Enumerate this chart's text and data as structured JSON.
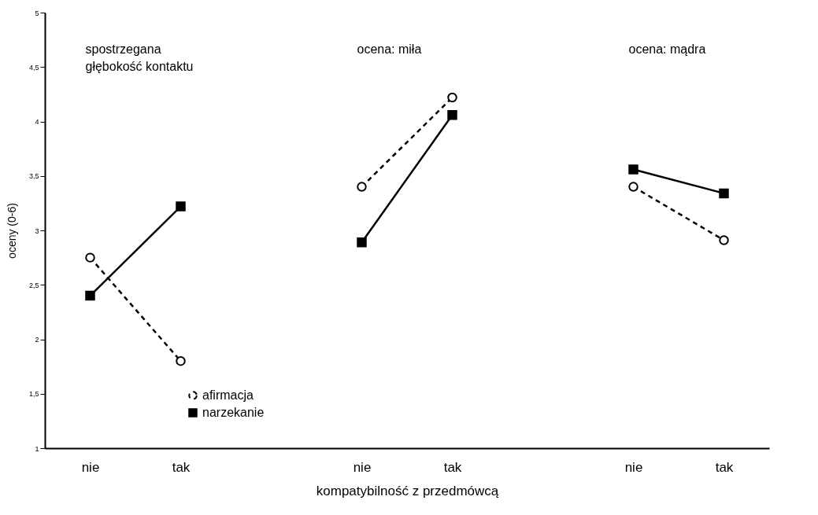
{
  "chart_data": {
    "type": "line",
    "xlabel": "kompatybilność z przedmówcą",
    "ylabel": "oceny (0-6)",
    "categories": [
      "nie",
      "tak",
      null,
      "nie",
      "tak",
      null,
      "nie",
      "tak"
    ],
    "series": [
      {
        "name": "afirmacja",
        "color": "#000000",
        "marker": "circle",
        "line_style": "dashed",
        "values": [
          2.75,
          1.8,
          null,
          3.4,
          4.22,
          null,
          3.4,
          2.91
        ]
      },
      {
        "name": "narzekanie",
        "color": "#000000",
        "marker": "square",
        "line_style": "solid",
        "values": [
          2.4,
          3.22,
          null,
          2.89,
          4.06,
          null,
          3.56,
          3.34
        ]
      }
    ],
    "ylim": [
      1,
      5
    ],
    "yticks": [
      1,
      {
        "value": 1.5,
        "label": "1,5"
      },
      2,
      {
        "value": 2.5,
        "label": "2,5"
      },
      3,
      {
        "value": 3.5,
        "label": "3,5"
      },
      4,
      {
        "value": 4.5,
        "label": "4,5"
      },
      5
    ],
    "annotations": [
      "spostrzegana\ngłębokość kontaktu",
      "ocena: miła",
      "ocena: mądra"
    ],
    "grid": false,
    "legend": "bottom left"
  }
}
